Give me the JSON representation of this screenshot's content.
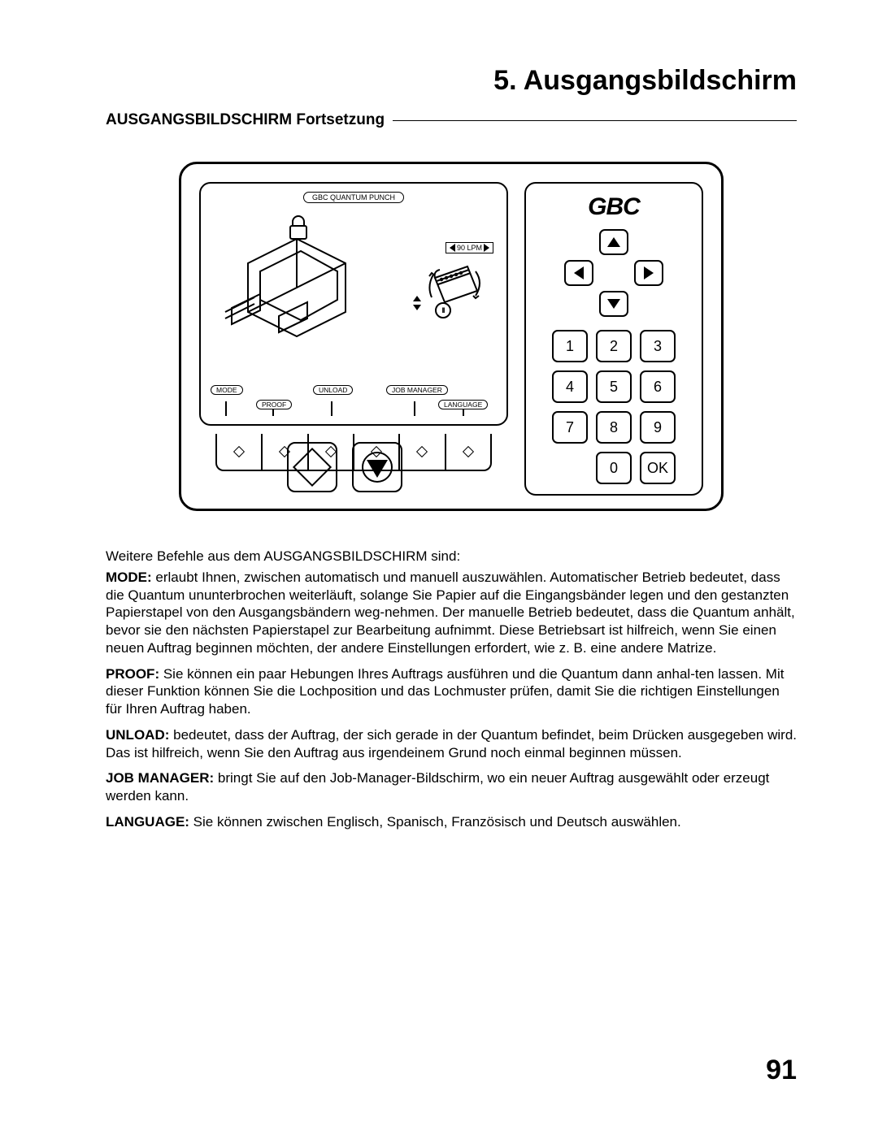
{
  "page": {
    "title": "5. Ausgangsbildschirm",
    "section_heading": "AUSGANGSBILDSCHIRM Fortsetzung",
    "number": "91"
  },
  "panel": {
    "brand": "GBC",
    "screen_title": "GBC QUANTUM PUNCH",
    "speed_label": "90 LPM",
    "pause_glyph": "II",
    "screen_buttons": {
      "mode": "MODE",
      "proof": "PROOF",
      "unload": "UNLOAD",
      "job_manager": "JOB MANAGER",
      "language": "LANGUAGE"
    },
    "keypad": [
      "1",
      "2",
      "3",
      "4",
      "5",
      "6",
      "7",
      "8",
      "9",
      "",
      "0",
      "OK"
    ],
    "colors": {
      "outline": "#000000",
      "background": "#ffffff"
    }
  },
  "text": {
    "intro": "Weitere Befehle aus dem AUSGANGSBILDSCHIRM sind:",
    "items": [
      {
        "lead": "MODE:",
        "body": " erlaubt Ihnen, zwischen automatisch und manuell auszuwählen. Automatischer Betrieb bedeutet, dass die Quantum ununterbrochen weiterläuft, solange Sie Papier auf die Eingangsbänder legen und den gestanzten Papierstapel von den Ausgangsbändern weg-nehmen. Der manuelle Betrieb bedeutet, dass die Quantum anhält, bevor sie den nächsten Papierstapel zur Bearbeitung aufnimmt. Diese Betriebsart ist hilfreich, wenn Sie einen neuen Auftrag beginnen möchten, der andere Einstellungen erfordert, wie z. B. eine andere Matrize.",
        "justify": false
      },
      {
        "lead": "PROOF:",
        "body": " Sie können ein paar Hebungen Ihres Auftrags ausführen und die Quantum dann anhal-ten lassen. Mit dieser Funktion können Sie die Lochposition und das Lochmuster prüfen, damit Sie die richtigen Einstellungen für Ihren Auftrag haben.",
        "justify": false
      },
      {
        "lead": "UNLOAD:",
        "body": " bedeutet, dass der Auftrag, der sich gerade in der Quantum befindet, beim Drücken ausgegeben wird. Das ist hilfreich, wenn Sie den Auftrag aus irgendeinem Grund noch einmal beginnen müssen.",
        "justify": true
      },
      {
        "lead": "JOB MANAGER:",
        "body": " bringt Sie auf den Job-Manager-Bildschirm, wo ein neuer Auftrag ausgewählt oder erzeugt werden kann.",
        "justify": false
      },
      {
        "lead": "LANGUAGE:",
        "body": " Sie können zwischen Englisch, Spanisch, Französisch und Deutsch auswählen.",
        "justify": false
      }
    ]
  }
}
